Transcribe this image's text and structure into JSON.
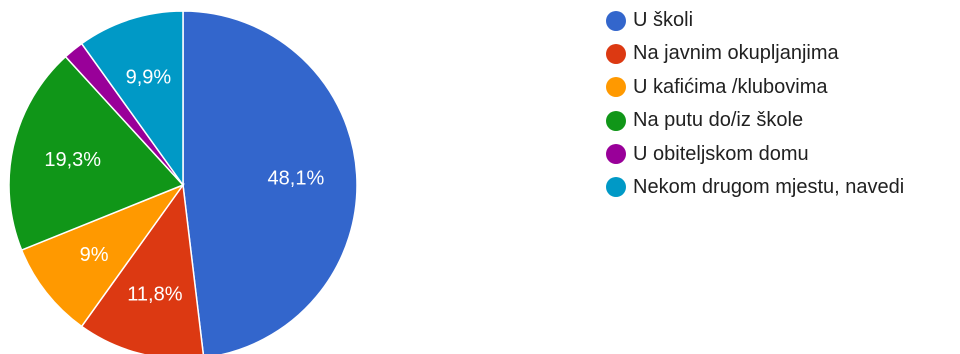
{
  "chart_data": {
    "type": "pie",
    "title": "",
    "start_angle_deg": 90,
    "direction": "clockwise",
    "legend_position": "right",
    "slices": [
      {
        "label": "U školi",
        "value": 48.1,
        "display": "48,1%",
        "color": "#3366cc"
      },
      {
        "label": "Na javnim okupljanjima",
        "value": 11.8,
        "display": "11,8%",
        "color": "#dc3912"
      },
      {
        "label": "U kafićima /klubovima",
        "value": 9,
        "display": "9%",
        "color": "#ff9900"
      },
      {
        "label": "Na putu do/iz škole",
        "value": 19.3,
        "display": "19,3%",
        "color": "#109618"
      },
      {
        "label": "U obiteljskom domu",
        "value": 1.9,
        "display": "",
        "color": "#990099"
      },
      {
        "label": "Nekom drugom mjestu, navedi",
        "value": 9.9,
        "display": "9,9%",
        "color": "#0099c6"
      }
    ]
  }
}
